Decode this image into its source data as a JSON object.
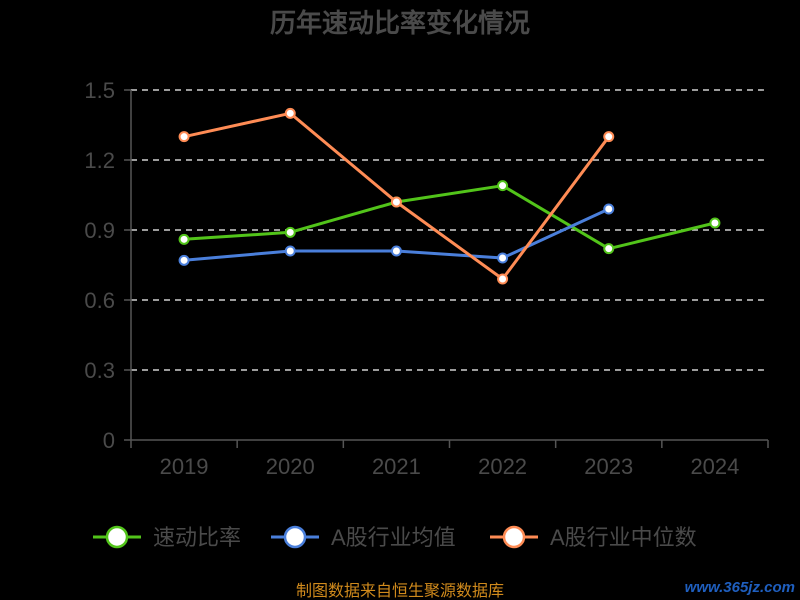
{
  "chart_data": {
    "type": "line",
    "title": "历年速动比率变化情况",
    "xlabel": "",
    "ylabel": "",
    "categories": [
      "2019",
      "2020",
      "2021",
      "2022",
      "2023",
      "2024"
    ],
    "y_ticks": [
      "0",
      "0.3",
      "0.6",
      "0.9",
      "1.2",
      "1.5"
    ],
    "ylim": [
      0,
      1.5
    ],
    "grid": true,
    "legend_position": "bottom",
    "series": [
      {
        "name": "速动比率",
        "color": "#52c41a",
        "values": [
          0.86,
          0.89,
          1.02,
          1.09,
          0.82,
          0.93
        ]
      },
      {
        "name": "A股行业均值",
        "color": "#4a7fdb",
        "values": [
          0.77,
          0.81,
          0.81,
          0.78,
          0.99,
          null
        ]
      },
      {
        "name": "A股行业中位数",
        "color": "#ff8c55",
        "values": [
          1.3,
          1.4,
          1.02,
          0.69,
          1.3,
          null
        ]
      }
    ]
  },
  "footer": {
    "source": "制图数据来自恒生聚源数据库",
    "watermark": "www.365jz.com"
  }
}
